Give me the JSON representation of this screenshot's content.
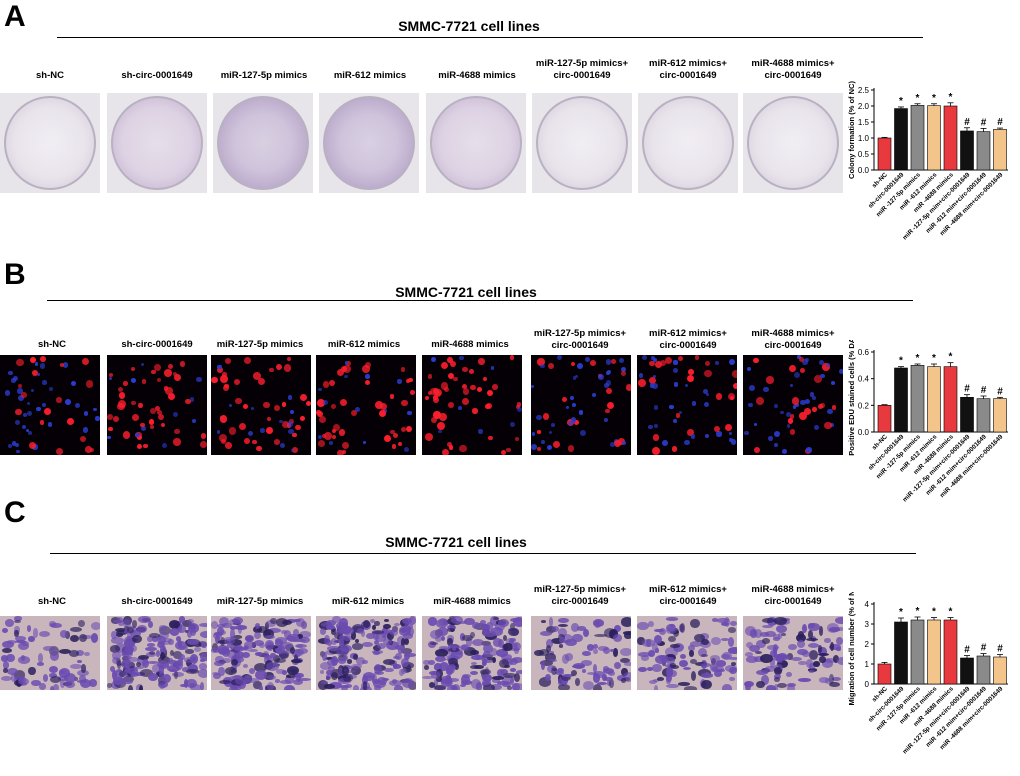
{
  "panels": [
    {
      "letter": "A",
      "title": "SMMC-7721 cell lines",
      "image_kind": "dish",
      "columns": [
        "sh-NC",
        "sh-circ-0001649",
        "miR-127-5p mimics",
        "miR-612 mimics",
        "miR-4688 mimics",
        "miR-127-5p mimics+\ncirc-0001649",
        "miR-612 mimics+\ncirc-0001649",
        "miR-4688 mimics+\ncirc-0001649"
      ]
    },
    {
      "letter": "B",
      "title": "SMMC-7721 cell lines",
      "image_kind": "fluorescence",
      "columns": [
        "sh-NC",
        "sh-circ-0001649",
        "miR-127-5p mimics",
        "miR-612 mimics",
        "miR-4688 mimics",
        "miR-127-5p mimics+\ncirc-0001649",
        "miR-612 mimics+\ncirc-0001649",
        "miR-4688 mimics+\ncirc-0001649"
      ]
    },
    {
      "letter": "C",
      "title": "SMMC-7721 cell lines",
      "image_kind": "transwell",
      "columns": [
        "sh-NC",
        "sh-circ-0001649",
        "miR-127-5p mimics",
        "miR-612 mimics",
        "miR-4688 mimics",
        "miR-127-5p mimics+\ncirc-0001649",
        "miR-612 mimics+\ncirc-0001649",
        "miR-4688 mimics+\ncirc-0001649"
      ]
    }
  ],
  "colors": {
    "bars": [
      "#e83a3e",
      "#111111",
      "#8a8a8a",
      "#f4c58a",
      "#e83a3e",
      "#111111",
      "#8a8a8a",
      "#f4c58a"
    ]
  },
  "chart_data": [
    {
      "type": "bar",
      "panel": "A",
      "ylabel": "Colony formation (% of NC)",
      "categories": [
        "sh-NC",
        "sh-circ-0001649",
        "miR -127-5p mimics",
        "miR -612 mimics",
        "miR -4688 mimics",
        "miR -127-5p mim+circ-0001649",
        "miR -612 mim+circ-0001649",
        "miR -4688 mim+circ-0001649"
      ],
      "values": [
        1.0,
        1.92,
        2.02,
        2.01,
        2.0,
        1.22,
        1.2,
        1.27
      ],
      "errors": [
        0.02,
        0.05,
        0.05,
        0.06,
        0.1,
        0.1,
        0.1,
        0.04
      ],
      "markers": [
        "",
        "*",
        "*",
        "*",
        "*",
        "#",
        "#",
        "#"
      ],
      "ylim": [
        0,
        2.5
      ],
      "yticks": [
        "0.0",
        "0.5",
        "1.0",
        "1.5",
        "2.0",
        "2.5"
      ]
    },
    {
      "type": "bar",
      "panel": "B",
      "ylabel": "Positive EDU stained cells (% DAPI)",
      "categories": [
        "sh-NC",
        "sh-circ-0001649",
        "miR -127-5p mimics",
        "miR -612 mimics",
        "miR -4688 mimics",
        "miR -127-5p mim+circ-0001649",
        "miR -612 mim+circ-0001649",
        "miR -4688 mim+circ-0001649"
      ],
      "values": [
        0.2,
        0.48,
        0.5,
        0.49,
        0.49,
        0.26,
        0.25,
        0.25
      ],
      "errors": [
        0.005,
        0.01,
        0.01,
        0.02,
        0.03,
        0.02,
        0.02,
        0.01
      ],
      "markers": [
        "",
        "*",
        "*",
        "*",
        "*",
        "#",
        "#",
        "#"
      ],
      "ylim": [
        0,
        0.6
      ],
      "yticks": [
        "0.0",
        "0.2",
        "0.4",
        "0.6"
      ]
    },
    {
      "type": "bar",
      "panel": "C",
      "ylabel": "Migration of cell number (% of NC)",
      "categories": [
        "sh-NC",
        "sh-circ-0001649",
        "miR -127-5p mimics",
        "miR -612 mimics",
        "miR -4688 mimics",
        "miR -127-5p mim+circ-0001649",
        "miR -612 mim+circ-0001649",
        "miR -4688 mim+circ-0001649"
      ],
      "values": [
        1.0,
        3.1,
        3.2,
        3.2,
        3.2,
        1.3,
        1.4,
        1.35
      ],
      "errors": [
        0.08,
        0.2,
        0.15,
        0.12,
        0.12,
        0.12,
        0.12,
        0.12
      ],
      "markers": [
        "",
        "*",
        "*",
        "*",
        "*",
        "#",
        "#",
        "#"
      ],
      "ylim": [
        0,
        4
      ],
      "yticks": [
        "0",
        "1",
        "2",
        "3",
        "4"
      ]
    }
  ]
}
